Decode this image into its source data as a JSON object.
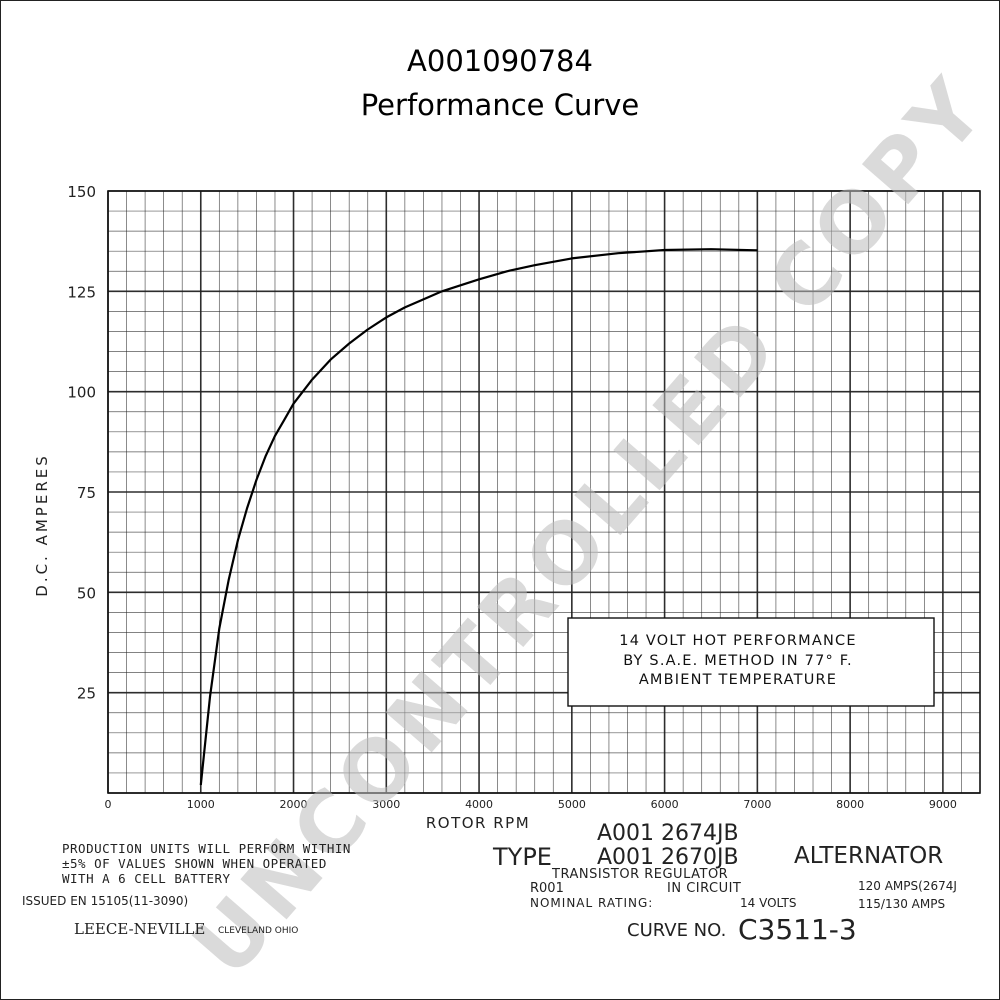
{
  "header": {
    "part_number": "A001090784",
    "subtitle": "Performance Curve"
  },
  "watermark": "UNCONTROLLED COPY",
  "chart_data": {
    "type": "line",
    "title": "",
    "xlabel": "ROTOR RPM",
    "ylabel": "D.C. AMPERES",
    "xlim": [
      0,
      9400
    ],
    "ylim": [
      0,
      150
    ],
    "x_ticks": [
      0,
      1000,
      2000,
      3000,
      4000,
      5000,
      6000,
      7000,
      8000,
      9000
    ],
    "y_ticks": [
      25,
      50,
      75,
      100,
      125,
      150
    ],
    "grid": true,
    "series": [
      {
        "x": [
          1000,
          1100,
          1200,
          1300,
          1400,
          1500,
          1600,
          1700,
          1800,
          1900,
          2000,
          2200,
          2400,
          2600,
          2800,
          3000,
          3200,
          3400,
          3600,
          3800,
          4000,
          4300,
          4600,
          5000,
          5500,
          6000,
          6500,
          7000
        ],
        "y": [
          2,
          24,
          41,
          53,
          63,
          71,
          78,
          84,
          89,
          93,
          97,
          103,
          108,
          112,
          115.5,
          118.5,
          121,
          123,
          125,
          126.5,
          128,
          130,
          131.5,
          133.2,
          134.5,
          135.3,
          135.5,
          135.2
        ]
      }
    ],
    "annotation": [
      "14 VOLT HOT PERFORMANCE",
      "BY S.A.E. METHOD IN 77° F.",
      "AMBIENT TEMPERATURE"
    ]
  },
  "footer": {
    "production_note": [
      "PRODUCTION UNITS WILL PERFORM WITHIN",
      "±5% OF VALUES SHOWN WHEN OPERATED",
      "WITH A 6 CELL BATTERY"
    ],
    "issued": "ISSUED EN 15105(11-3090)",
    "brand": "LEECE-NEVILLE",
    "city": "CLEVELAND OHIO",
    "type_label": "TYPE",
    "type_numbers": [
      "A001 2674JB",
      "A001 2670JB"
    ],
    "alternator": "ALTERNATOR",
    "regulator_line1": "TRANSISTOR REGULATOR",
    "regulator_line2a": "R001",
    "regulator_line2b": "IN CIRCUIT",
    "nominal_label": "NOMINAL RATING:",
    "nominal_value": "14 VOLTS",
    "amps_1": "120 AMPS(2674J",
    "amps_2": "115/130 AMPS",
    "curve_label": "CURVE NO.",
    "curve_number": "C3511-3"
  }
}
